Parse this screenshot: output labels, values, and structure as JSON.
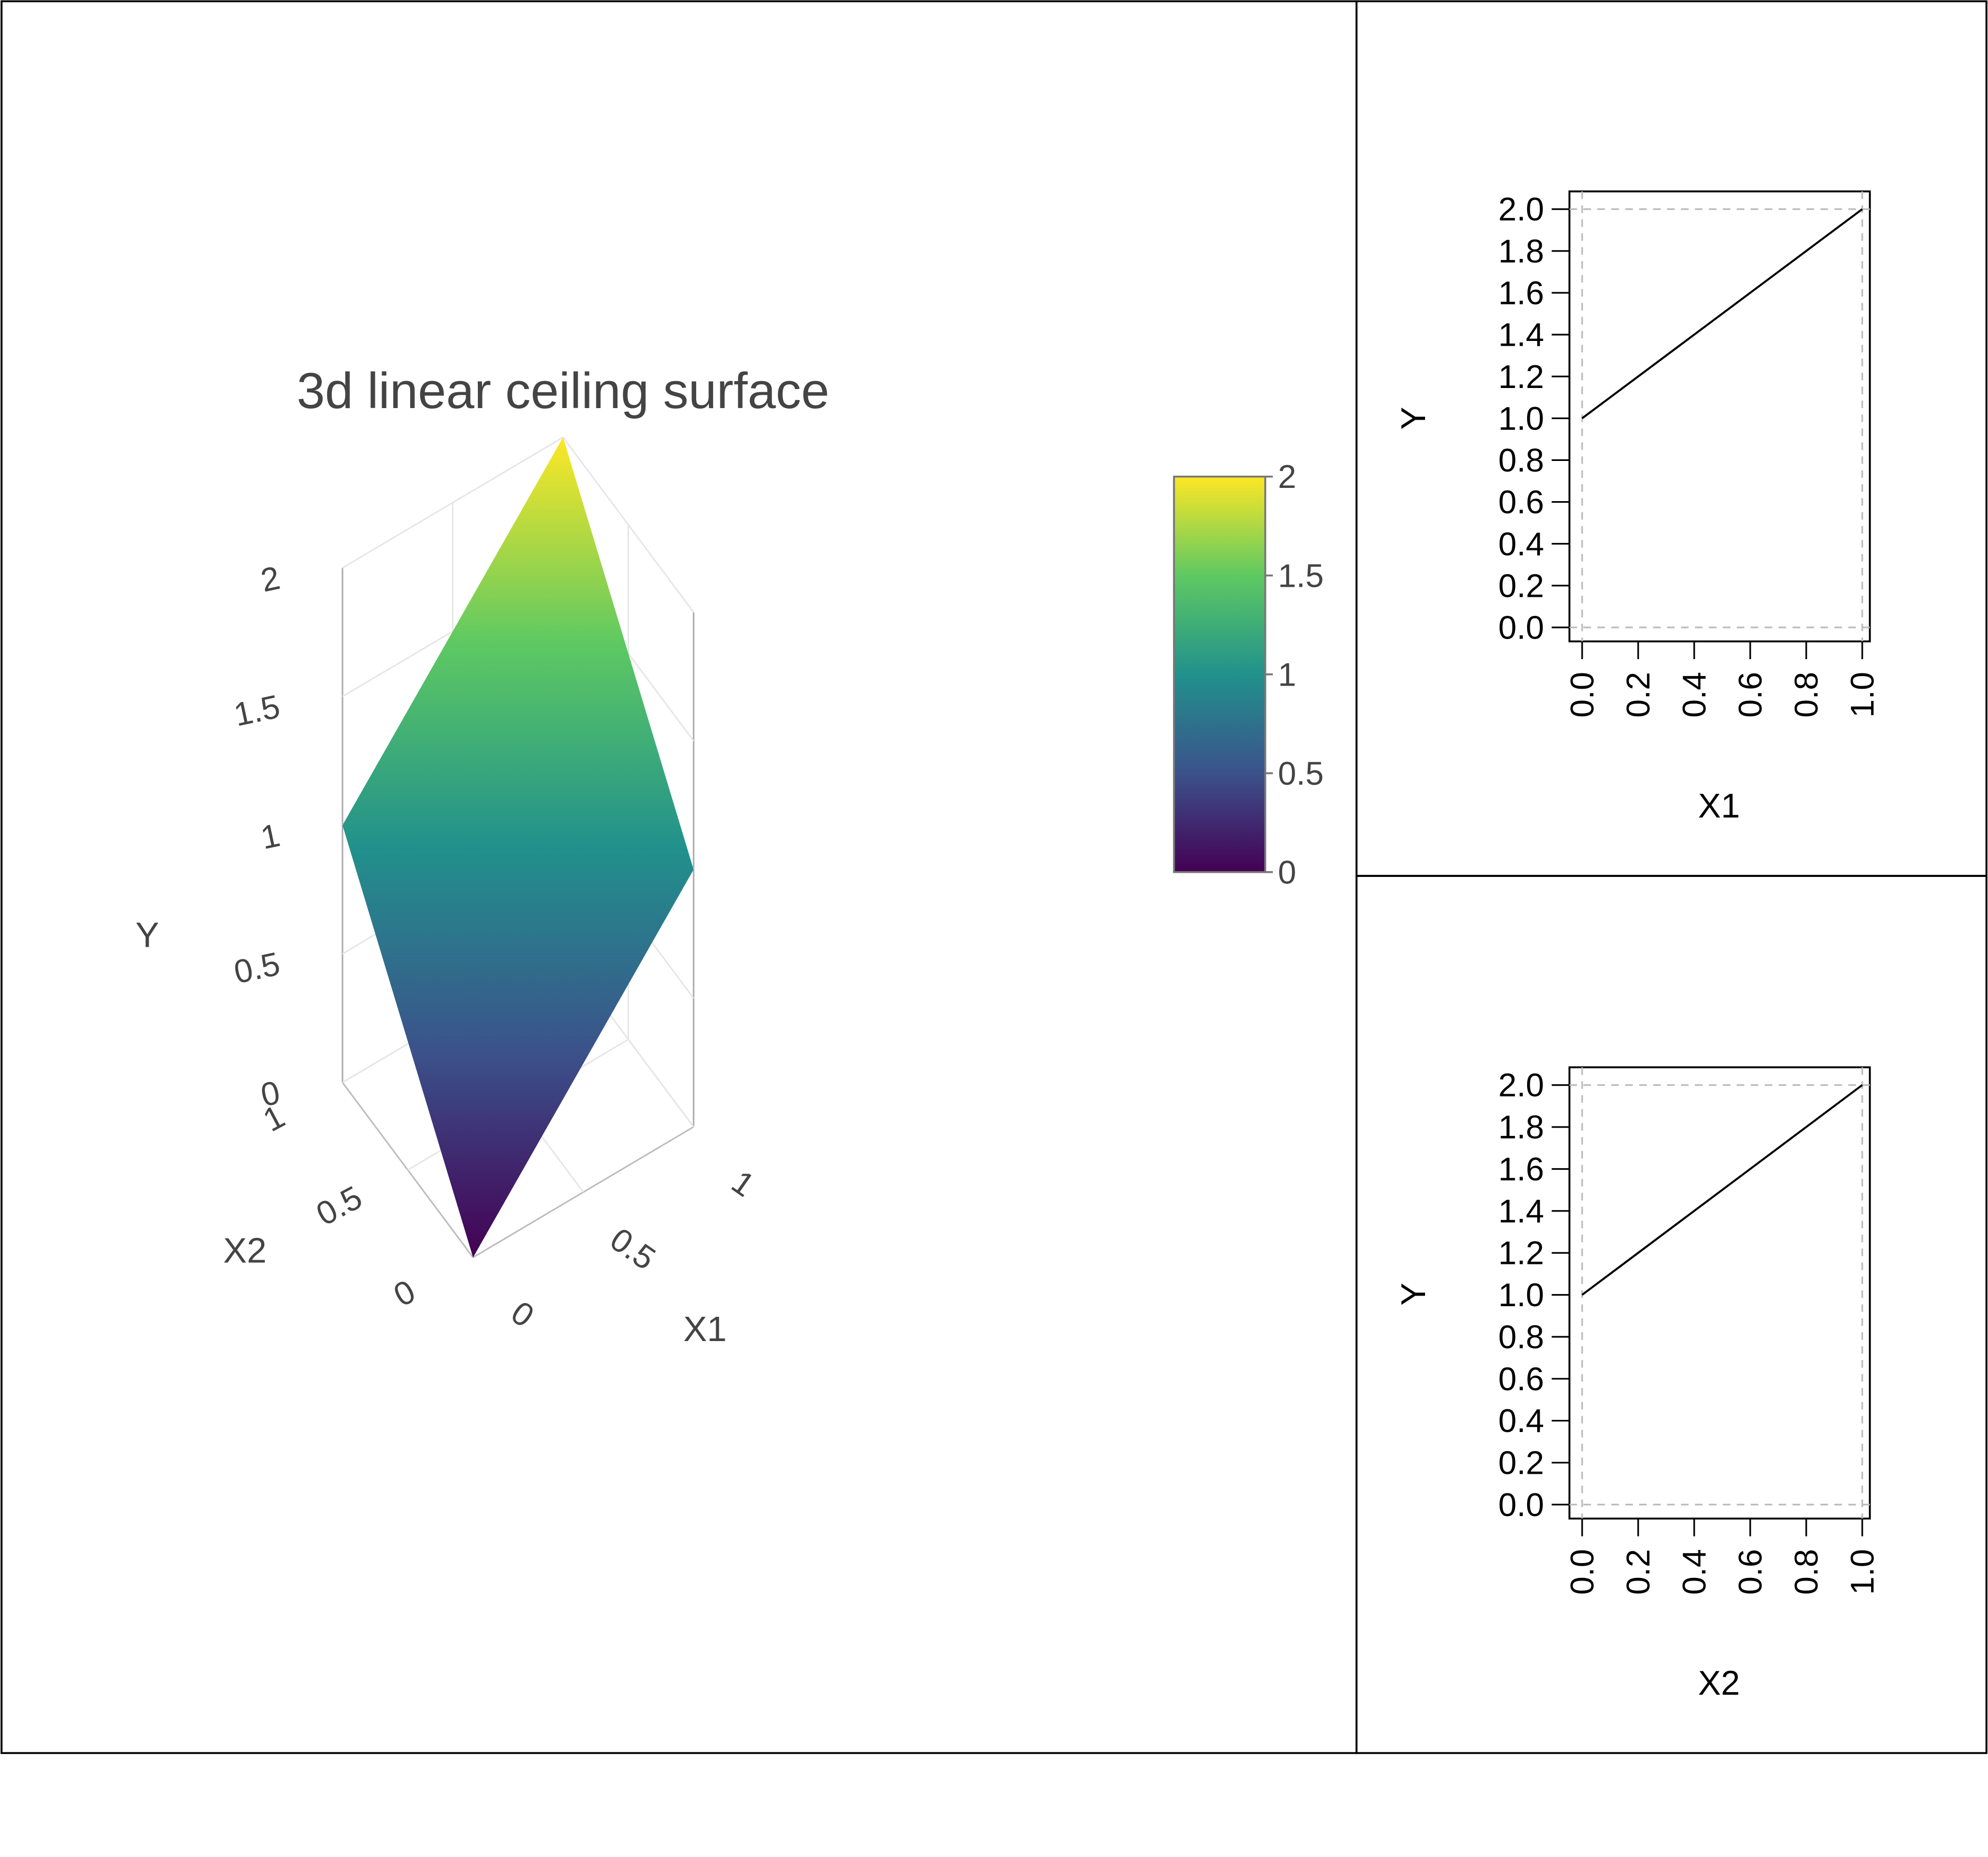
{
  "chart_data": [
    {
      "type": "surface",
      "title": "3d linear ceiling surface",
      "xlabel": "X1",
      "ylabel": "X2",
      "zlabel": "Y",
      "x_ticks": [
        "0",
        "0.5",
        "1"
      ],
      "y_ticks": [
        "0",
        "0.5",
        "1"
      ],
      "z_ticks": [
        "0",
        "0.5",
        "1",
        "1.5",
        "2"
      ],
      "xlim": [
        0,
        1
      ],
      "ylim": [
        0,
        1
      ],
      "zlim": [
        0,
        2
      ],
      "corners": [
        {
          "x": 0,
          "y": 0,
          "z": 0
        },
        {
          "x": 1,
          "y": 0,
          "z": 1
        },
        {
          "x": 1,
          "y": 1,
          "z": 2
        },
        {
          "x": 0,
          "y": 1,
          "z": 1
        }
      ],
      "colorscale": "viridis",
      "colorbar": {
        "ticks": [
          "0",
          "0.5",
          "1",
          "1.5",
          "2"
        ],
        "range": [
          0,
          2
        ],
        "colors": [
          "#440154",
          "#3b528b",
          "#21918c",
          "#5ec962",
          "#fde725"
        ]
      },
      "grid": true
    },
    {
      "type": "line",
      "xlabel": "X1",
      "ylabel": "Y",
      "x": [
        0,
        1
      ],
      "y": [
        1,
        2
      ],
      "xlim": [
        0,
        1
      ],
      "ylim": [
        0,
        2
      ],
      "x_ticks": [
        "0.0",
        "0.2",
        "0.4",
        "0.6",
        "0.8",
        "1.0"
      ],
      "y_ticks": [
        "0.0",
        "0.2",
        "0.4",
        "0.6",
        "0.8",
        "1.0",
        "1.2",
        "1.4",
        "1.6",
        "1.8",
        "2.0"
      ],
      "reference_lines": {
        "x": [
          0,
          1
        ],
        "y": [
          0,
          2
        ],
        "style": "dashed"
      }
    },
    {
      "type": "line",
      "xlabel": "X2",
      "ylabel": "Y",
      "x": [
        0,
        1
      ],
      "y": [
        1,
        2
      ],
      "xlim": [
        0,
        1
      ],
      "ylim": [
        0,
        2
      ],
      "x_ticks": [
        "0.0",
        "0.2",
        "0.4",
        "0.6",
        "0.8",
        "1.0"
      ],
      "y_ticks": [
        "0.0",
        "0.2",
        "0.4",
        "0.6",
        "0.8",
        "1.0",
        "1.2",
        "1.4",
        "1.6",
        "1.8",
        "2.0"
      ],
      "reference_lines": {
        "x": [
          0,
          1
        ],
        "y": [
          0,
          2
        ],
        "style": "dashed"
      }
    }
  ]
}
